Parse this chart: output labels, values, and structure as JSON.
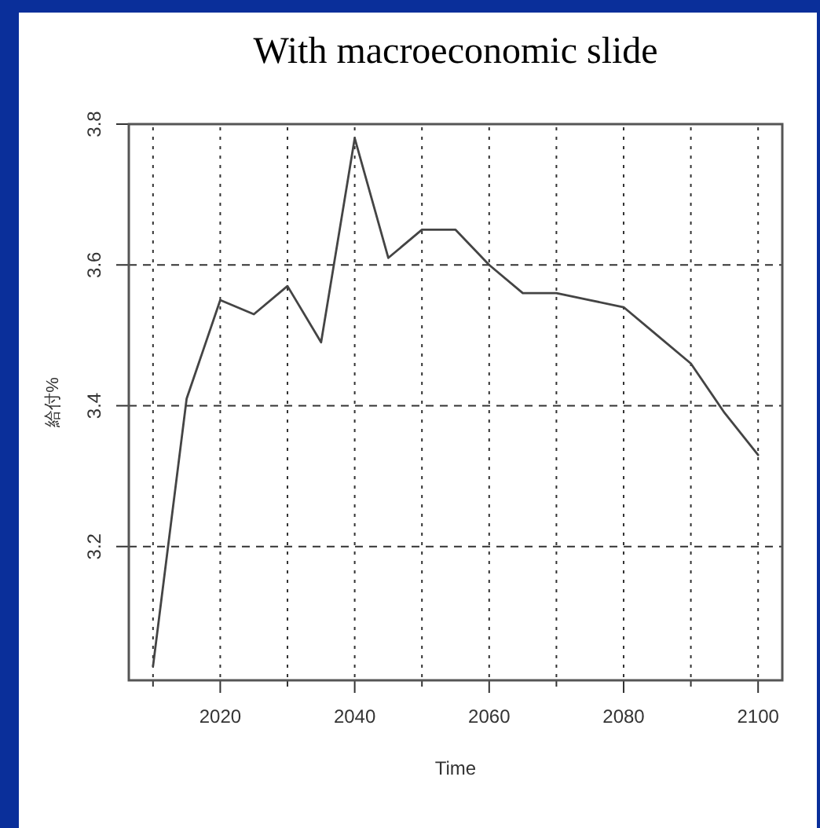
{
  "chart_data": {
    "type": "line",
    "title": "With macroeconomic slide",
    "xlabel": "Time",
    "ylabel": "給付%",
    "x": [
      2010,
      2015,
      2020,
      2025,
      2030,
      2035,
      2040,
      2045,
      2050,
      2055,
      2060,
      2065,
      2070,
      2075,
      2080,
      2085,
      2090,
      2095,
      2100
    ],
    "series": [
      {
        "color": "#444444",
        "values": [
          3.03,
          3.41,
          3.55,
          3.53,
          3.57,
          3.49,
          3.78,
          3.61,
          3.65,
          3.65,
          3.6,
          3.56,
          3.56,
          3.55,
          3.54,
          3.5,
          3.46,
          3.39,
          3.33
        ]
      }
    ],
    "xlim": [
      2006.4,
      2103.6
    ],
    "ylim": [
      3.01,
      3.8
    ],
    "xticks": [
      {
        "value": 2010,
        "label": null
      },
      2020,
      {
        "value": 2030,
        "label": null
      },
      2040,
      {
        "value": 2050,
        "label": null
      },
      2060,
      {
        "value": 2070,
        "label": null
      },
      2080,
      {
        "value": 2090,
        "label": null
      },
      2100
    ],
    "yticks": [
      3.2,
      3.4,
      3.6,
      3.8
    ],
    "grid": true,
    "line_style": "solid",
    "marker": "none"
  }
}
